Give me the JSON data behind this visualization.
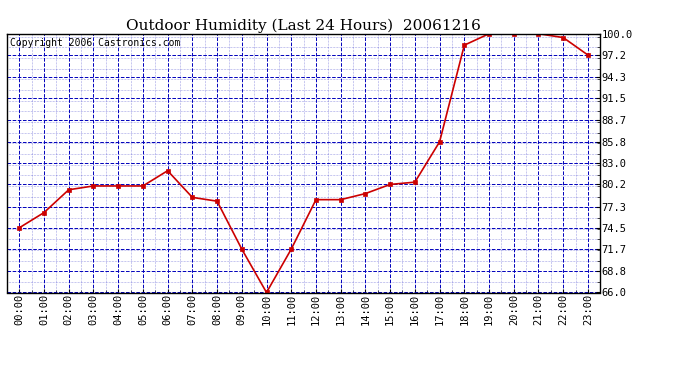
{
  "title": "Outdoor Humidity (Last 24 Hours)  20061216",
  "copyright": "Copyright 2006 Castronics.com",
  "x_labels": [
    "00:00",
    "01:00",
    "02:00",
    "03:00",
    "04:00",
    "05:00",
    "06:00",
    "07:00",
    "08:00",
    "09:00",
    "10:00",
    "11:00",
    "12:00",
    "13:00",
    "14:00",
    "15:00",
    "16:00",
    "17:00",
    "18:00",
    "19:00",
    "20:00",
    "21:00",
    "22:00",
    "23:00"
  ],
  "y_values": [
    74.5,
    76.5,
    79.5,
    80.0,
    80.0,
    80.0,
    82.0,
    78.5,
    78.0,
    71.7,
    66.0,
    71.7,
    78.2,
    78.2,
    79.0,
    80.2,
    80.5,
    85.8,
    98.5,
    100.0,
    100.0,
    100.0,
    99.5,
    97.2
  ],
  "line_color": "#cc0000",
  "marker_color": "#cc0000",
  "grid_major_color": "#0000bb",
  "grid_minor_color": "#0000bb",
  "background_color": "#ffffff",
  "plot_bg_color": "#ffffff",
  "y_tick_values": [
    66.0,
    68.8,
    71.7,
    74.5,
    77.3,
    80.2,
    83.0,
    85.8,
    88.7,
    91.5,
    94.3,
    97.2,
    100.0
  ],
  "ylim": [
    66.0,
    100.0
  ],
  "title_fontsize": 11,
  "tick_fontsize": 7.5,
  "copyright_fontsize": 7
}
